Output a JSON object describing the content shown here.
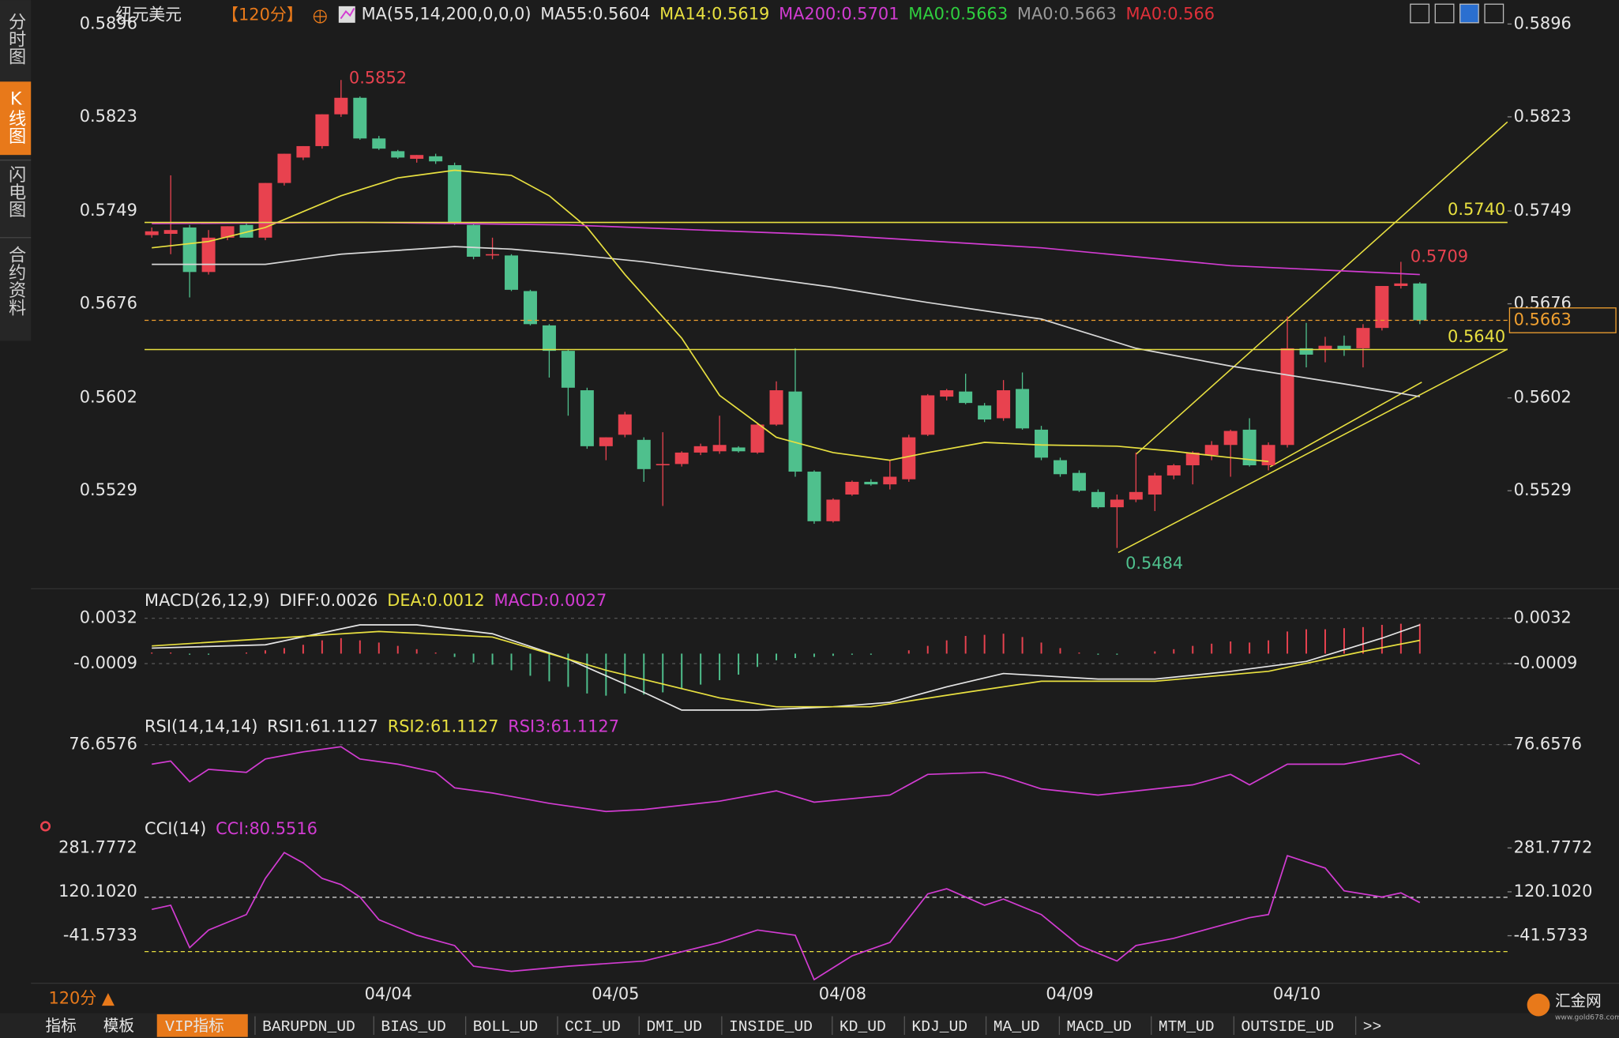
{
  "sidebar": [
    "分时图",
    "K线图",
    "闪电图",
    "合约资料"
  ],
  "symbol": "纽元美元",
  "period": "【120分】",
  "period_button": "120分 ▲",
  "footer_tabs": [
    "指标",
    "模板",
    "VIP指标",
    "BARUPDN_UD",
    "BIAS_UD",
    "BOLL_UD",
    "CCI_UD",
    "DMI_UD",
    "INSIDE_UD",
    "KD_UD",
    "KDJ_UD",
    "MA_UD",
    "MACD_UD",
    "MTM_UD",
    "OUTSIDE_UD",
    ">>"
  ],
  "logo": "汇金网",
  "logo_url": "www.gold678.com",
  "chart_data": [
    {
      "type": "candlestick",
      "legend": [
        {
          "text": "MA(55,14,200,0,0,0)",
          "color": "#e6e6e6"
        },
        {
          "text": "MA55:0.5604",
          "color": "#e6e6e6"
        },
        {
          "text": "MA14:0.5619",
          "color": "#e8e040"
        },
        {
          "text": "MA200:0.5701",
          "color": "#d23cd2"
        },
        {
          "text": "MA0:0.5663",
          "color": "#2fcf3f"
        },
        {
          "text": "MA0:0.5663",
          "color": "#9a9a9a"
        },
        {
          "text": "MA0:0.566",
          "color": "#e0303a"
        }
      ],
      "categories": [
        null,
        null,
        null,
        null,
        null,
        null,
        null,
        null,
        null,
        null,
        null,
        null,
        "04/04",
        null,
        null,
        null,
        null,
        null,
        null,
        null,
        null,
        null,
        null,
        null,
        "04/05",
        null,
        null,
        null,
        null,
        null,
        null,
        null,
        null,
        null,
        null,
        null,
        "04/08",
        null,
        null,
        null,
        null,
        null,
        null,
        null,
        null,
        null,
        null,
        null,
        "04/09",
        null,
        null,
        null,
        null,
        null,
        null,
        null,
        null,
        null,
        null,
        null,
        "04/10",
        null,
        null,
        null,
        null,
        null,
        null,
        null
      ],
      "ohlc": [
        [
          0.573,
          0.5736,
          0.5728,
          0.5733
        ],
        [
          0.5731,
          0.5777,
          0.5715,
          0.5734
        ],
        [
          0.5736,
          0.5738,
          0.5681,
          0.5701
        ],
        [
          0.5701,
          0.5734,
          0.5699,
          0.5728
        ],
        [
          0.5728,
          0.5737,
          0.5726,
          0.5737
        ],
        [
          0.5738,
          0.574,
          0.5728,
          0.5728
        ],
        [
          0.5728,
          0.5771,
          0.5726,
          0.5771
        ],
        [
          0.5771,
          0.5794,
          0.5769,
          0.5794
        ],
        [
          0.5791,
          0.58,
          0.5789,
          0.58
        ],
        [
          0.58,
          0.5825,
          0.5798,
          0.5825
        ],
        [
          0.5825,
          0.5852,
          0.5823,
          0.5838
        ],
        [
          0.5838,
          0.5839,
          0.5805,
          0.5806
        ],
        [
          0.5806,
          0.5808,
          0.5797,
          0.5798
        ],
        [
          0.5796,
          0.5797,
          0.579,
          0.5791
        ],
        [
          0.579,
          0.5793,
          0.5787,
          0.5793
        ],
        [
          0.5792,
          0.5794,
          0.5786,
          0.5788
        ],
        [
          0.5785,
          0.5787,
          0.5738,
          0.574
        ],
        [
          0.5738,
          0.5739,
          0.5711,
          0.5713
        ],
        [
          0.5714,
          0.5728,
          0.5711,
          0.5715
        ],
        [
          0.5714,
          0.5715,
          0.5686,
          0.5687
        ],
        [
          0.5686,
          0.5687,
          0.5659,
          0.566
        ],
        [
          0.5659,
          0.566,
          0.5618,
          0.5639
        ],
        [
          0.5639,
          0.564,
          0.5588,
          0.561
        ],
        [
          0.5608,
          0.561,
          0.5562,
          0.5564
        ],
        [
          0.5564,
          0.5571,
          0.5553,
          0.5571
        ],
        [
          0.5573,
          0.5591,
          0.5571,
          0.5589
        ],
        [
          0.5569,
          0.5571,
          0.5536,
          0.5546
        ],
        [
          0.5549,
          0.5575,
          0.5517,
          0.555
        ],
        [
          0.555,
          0.556,
          0.5548,
          0.5559
        ],
        [
          0.5559,
          0.5566,
          0.5557,
          0.5564
        ],
        [
          0.556,
          0.5588,
          0.5558,
          0.5565
        ],
        [
          0.5563,
          0.5564,
          0.5559,
          0.556
        ],
        [
          0.5559,
          0.5582,
          0.5558,
          0.5581
        ],
        [
          0.5581,
          0.5615,
          0.558,
          0.5608
        ],
        [
          0.5607,
          0.5641,
          0.554,
          0.5544
        ],
        [
          0.5544,
          0.5545,
          0.5503,
          0.5505
        ],
        [
          0.5505,
          0.5523,
          0.5504,
          0.5522
        ],
        [
          0.5526,
          0.5537,
          0.5525,
          0.5536
        ],
        [
          0.5536,
          0.5538,
          0.5533,
          0.5534
        ],
        [
          0.5534,
          0.5553,
          0.553,
          0.554
        ],
        [
          0.5538,
          0.5573,
          0.5536,
          0.5571
        ],
        [
          0.5573,
          0.5605,
          0.5572,
          0.5604
        ],
        [
          0.5603,
          0.5609,
          0.56,
          0.5608
        ],
        [
          0.5607,
          0.5621,
          0.5597,
          0.5598
        ],
        [
          0.5596,
          0.5598,
          0.5583,
          0.5585
        ],
        [
          0.5586,
          0.5616,
          0.5584,
          0.5608
        ],
        [
          0.5609,
          0.5622,
          0.5577,
          0.5578
        ],
        [
          0.5577,
          0.558,
          0.5553,
          0.5555
        ],
        [
          0.5553,
          0.5555,
          0.554,
          0.5542
        ],
        [
          0.5543,
          0.5545,
          0.5528,
          0.5529
        ],
        [
          0.5528,
          0.553,
          0.5515,
          0.5516
        ],
        [
          0.5516,
          0.5526,
          0.5484,
          0.5522
        ],
        [
          0.5522,
          0.5559,
          0.552,
          0.5528
        ],
        [
          0.5526,
          0.5543,
          0.5513,
          0.5541
        ],
        [
          0.5541,
          0.555,
          0.5538,
          0.5549
        ],
        [
          0.5549,
          0.556,
          0.5534,
          0.5559
        ],
        [
          0.5557,
          0.5568,
          0.5553,
          0.5565
        ],
        [
          0.5565,
          0.5577,
          0.554,
          0.5576
        ],
        [
          0.5577,
          0.5586,
          0.5548,
          0.5549
        ],
        [
          0.5549,
          0.5567,
          0.5545,
          0.5565
        ],
        [
          0.5565,
          0.5666,
          0.5563,
          0.5641
        ],
        [
          0.5641,
          0.5661,
          0.5626,
          0.5636
        ],
        [
          0.564,
          0.565,
          0.563,
          0.5643
        ],
        [
          0.5643,
          0.5651,
          0.5635,
          0.564
        ],
        [
          0.5641,
          0.566,
          0.5626,
          0.5657
        ],
        [
          0.5657,
          0.569,
          0.5655,
          0.569
        ],
        [
          0.569,
          0.5709,
          0.5688,
          0.5692
        ],
        [
          0.5692,
          0.5693,
          0.566,
          0.5663
        ]
      ],
      "up_color": "#e8424f",
      "down_color": "#4fc08d",
      "ylim": [
        0.5456,
        0.5897
      ],
      "yticks": [
        0.5896,
        0.5823,
        0.5749,
        0.5676,
        0.5602,
        0.5529
      ],
      "series": [
        {
          "color": "#d8d8d8",
          "x": [
            0,
            6,
            10,
            16,
            19,
            22,
            26,
            30,
            36,
            41,
            47,
            52,
            57,
            63,
            67
          ],
          "values": [
            0.5707,
            0.5707,
            0.5715,
            0.5721,
            0.5719,
            0.5715,
            0.5709,
            0.5701,
            0.5689,
            0.5677,
            0.5664,
            0.5641,
            0.5627,
            0.5613,
            0.5603
          ]
        },
        {
          "color": "#e8e040",
          "x": [
            0,
            3,
            6,
            10,
            13,
            16,
            19,
            21,
            23,
            25,
            28,
            30,
            33,
            36,
            39,
            41,
            44,
            47,
            51,
            54,
            57,
            59
          ],
          "values": [
            0.572,
            0.5725,
            0.5736,
            0.5761,
            0.5775,
            0.5781,
            0.5777,
            0.5761,
            0.5736,
            0.5699,
            0.5649,
            0.5604,
            0.5571,
            0.5559,
            0.5553,
            0.5559,
            0.5567,
            0.5565,
            0.5564,
            0.556,
            0.5555,
            0.5552
          ]
        },
        {
          "color": "#d23cd2",
          "x": [
            0,
            11,
            22,
            36,
            47,
            57,
            67
          ],
          "values": [
            0.5739,
            0.574,
            0.5738,
            0.573,
            0.572,
            0.5706,
            0.5699
          ]
        }
      ],
      "hlines": [
        {
          "value": 0.574,
          "label": "0.5740"
        },
        {
          "value": 0.564,
          "label": "0.5640"
        }
      ],
      "hline_color": "#e8e040",
      "last": 0.5663,
      "last_color": "#f0a030"
    },
    {
      "type": "macd",
      "legend": [
        {
          "text": "MACD(26,12,9)",
          "color": "#e6e6e6"
        },
        {
          "text": "DIFF:0.0026",
          "color": "#e6e6e6"
        },
        {
          "text": "DEA:0.0012",
          "color": "#e8e040"
        },
        {
          "text": "MACD:0.0027",
          "color": "#d23cd2"
        }
      ],
      "ylim": [
        -0.0058,
        0.0054
      ],
      "yticks": [
        0.0032,
        -0.0009
      ],
      "grid": true,
      "up_color": "#e8424f",
      "down_color": "#4fc08d",
      "histogram": [
        0.0001,
        0.0001,
        -0.0001,
        -0.0001,
        0,
        0.0001,
        0.0003,
        0.0005,
        0.0008,
        0.0012,
        0.0014,
        0.0012,
        0.001,
        0.0007,
        0.0004,
        0.0001,
        -0.0003,
        -0.0008,
        -0.001,
        -0.0015,
        -0.002,
        -0.0025,
        -0.003,
        -0.0036,
        -0.0038,
        -0.0036,
        -0.0037,
        -0.0035,
        -0.0032,
        -0.0028,
        -0.0024,
        -0.0019,
        -0.0012,
        -0.0006,
        -0.0004,
        -0.0003,
        -0.0002,
        -0.0001,
        -0.0001,
        0,
        0.0003,
        0.0007,
        0.0012,
        0.0016,
        0.0017,
        0.0018,
        0.0015,
        0.001,
        0.0005,
        0.0001,
        -0.0001,
        -0.0001,
        0,
        0.0002,
        0.0004,
        0.0007,
        0.0009,
        0.0011,
        0.001,
        0.0012,
        0.002,
        0.0022,
        0.0022,
        0.0023,
        0.0024,
        0.0026,
        0.0027,
        0.0027
      ],
      "series": [
        {
          "color": "#e6e6e6",
          "x": [
            0,
            6,
            11,
            14,
            18,
            22,
            26,
            28,
            32,
            36,
            39,
            42,
            45,
            50,
            53,
            57,
            61,
            65,
            67
          ],
          "values": [
            0.0005,
            0.0008,
            0.0026,
            0.0026,
            0.0018,
            -0.0005,
            -0.0035,
            -0.0051,
            -0.0051,
            -0.0048,
            -0.0044,
            -0.003,
            -0.0018,
            -0.0023,
            -0.0023,
            -0.0016,
            -0.0007,
            0.0014,
            0.0026
          ]
        },
        {
          "color": "#e8e040",
          "x": [
            0,
            12,
            18,
            24,
            30,
            33,
            38,
            43,
            47,
            53,
            59,
            64,
            67
          ],
          "values": [
            0.0007,
            0.002,
            0.0015,
            -0.0015,
            -0.004,
            -0.0048,
            -0.0048,
            -0.0035,
            -0.0025,
            -0.0025,
            -0.0016,
            0.0002,
            0.0012
          ]
        }
      ]
    },
    {
      "type": "line",
      "legend": [
        {
          "text": "RSI(14,14,14)",
          "color": "#e6e6e6"
        },
        {
          "text": "RSI1:61.1127",
          "color": "#e6e6e6"
        },
        {
          "text": "RSI2:61.1127",
          "color": "#e8e040"
        },
        {
          "text": "RSI3:61.1127",
          "color": "#d23cd2"
        }
      ],
      "ylim": [
        20,
        84
      ],
      "yticks": [
        76.6576
      ],
      "grid": true,
      "series": [
        {
          "color": "#d23cd2",
          "x": [
            0,
            1,
            2,
            3,
            5,
            6,
            8,
            10,
            11,
            13,
            15,
            16,
            18,
            21,
            24,
            26,
            30,
            33,
            35,
            39,
            41,
            44,
            45,
            47,
            50,
            55,
            57,
            58,
            60,
            63,
            66,
            67
          ],
          "values": [
            61.1,
            63.6,
            47.2,
            57,
            54.6,
            65.2,
            70.9,
            75,
            65.2,
            61.1,
            54.6,
            42.3,
            38.2,
            30,
            23.5,
            25.1,
            31.7,
            39.9,
            30.9,
            36.6,
            53,
            54.6,
            51.3,
            41.5,
            36.6,
            44.7,
            53,
            44.7,
            61.1,
            61.1,
            69.3,
            61.1127
          ]
        }
      ]
    },
    {
      "type": "line",
      "legend": [
        {
          "text": "CCI(14)",
          "color": "#e6e6e6"
        },
        {
          "text": "CCI:80.5516",
          "color": "#d23cd2"
        }
      ],
      "ylim": [
        -209,
        316
      ],
      "yticks": [
        281.7772,
        {
          "value": 120.102,
          "label": "120.1020"
        },
        -41.5733
      ],
      "levels": [
        {
          "value": 100,
          "color": "#e6e6e6"
        },
        {
          "value": -100,
          "color": "#e8e040"
        }
      ],
      "series": [
        {
          "color": "#d23cd2",
          "x": [
            0,
            1,
            2,
            3,
            5,
            6,
            7,
            8,
            9,
            10,
            11,
            12,
            14,
            16,
            17,
            19,
            22,
            26,
            30,
            32,
            34,
            35,
            37,
            39,
            41,
            42,
            44,
            45,
            47,
            49,
            51,
            52,
            54,
            58,
            59,
            60,
            62,
            63,
            65,
            66,
            67
          ],
          "values": [
            55.4,
            70.6,
            -85.3,
            -20.6,
            36.4,
            169.5,
            264.7,
            226.6,
            169.5,
            146.7,
            101.1,
            17.4,
            -39.7,
            -77.7,
            -153.8,
            -172.8,
            -153.8,
            -134.8,
            -66.3,
            -20.6,
            -39.7,
            -203.2,
            -115.7,
            -66.3,
            112.5,
            131.5,
            70.6,
            93.4,
            36.4,
            -77.7,
            -134.8,
            -77.7,
            -51.1,
            25,
            36.4,
            253.2,
            207.6,
            123.9,
            101.1,
            116.3,
            80.5516
          ]
        }
      ]
    }
  ]
}
